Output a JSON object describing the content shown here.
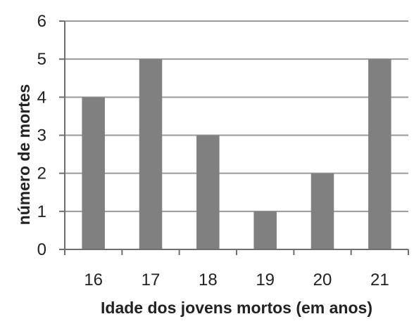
{
  "chart_data": {
    "type": "bar",
    "categories": [
      "16",
      "17",
      "18",
      "19",
      "20",
      "21"
    ],
    "values": [
      4,
      5,
      3,
      1,
      2,
      5
    ],
    "title": "",
    "xlabel": "Idade dos jovens mortos (em anos)",
    "ylabel": "número de mortes",
    "ylim": [
      0,
      6
    ],
    "yticks": [
      "0",
      "1",
      "2",
      "3",
      "4",
      "5",
      "6"
    ],
    "grid": true,
    "legend": "none",
    "colors": {
      "bar": "#808080",
      "grid": "#9a9a9a",
      "axis": "#6f6f6f"
    }
  }
}
